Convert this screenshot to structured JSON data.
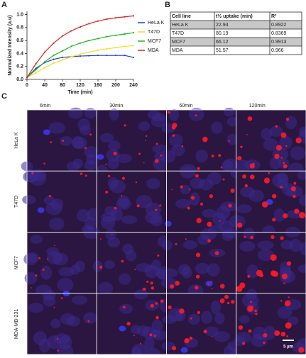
{
  "panel_labels": [
    "A",
    "B",
    "C"
  ],
  "chart_data": {
    "type": "line",
    "xlabel": "Time (min)",
    "ylabel": "Normalized Intensity (a.u)",
    "x": [
      0,
      20,
      40,
      60,
      80,
      100,
      120,
      140,
      160,
      180,
      200,
      220,
      240
    ],
    "xlim": [
      0,
      240
    ],
    "xticks": [
      0,
      40,
      80,
      120,
      160,
      200,
      240
    ],
    "ylim": [
      0,
      1.05
    ],
    "yticks": [
      {
        "value": 0,
        "label": "0.0"
      },
      0.2,
      0.4,
      0.6,
      0.8,
      {
        "value": 1,
        "label": "1.0"
      }
    ],
    "legend": "upper right",
    "series": [
      {
        "name": "HeLa K",
        "color": "#1f3fc8",
        "values": [
          0.03,
          0.17,
          0.26,
          0.31,
          0.34,
          0.35,
          0.36,
          0.365,
          0.37,
          0.37,
          0.37,
          0.37,
          0.34
        ]
      },
      {
        "name": "T47D",
        "color": "#f0e020",
        "values": [
          0.03,
          0.1,
          0.18,
          0.25,
          0.3,
          0.35,
          0.39,
          0.42,
          0.45,
          0.47,
          0.49,
          0.51,
          0.52
        ]
      },
      {
        "name": "MCF7",
        "color": "#18b818",
        "values": [
          0.03,
          0.15,
          0.27,
          0.37,
          0.44,
          0.51,
          0.56,
          0.6,
          0.63,
          0.66,
          0.68,
          0.7,
          0.72
        ]
      },
      {
        "name": "MDA",
        "color": "#e02020",
        "values": [
          0.03,
          0.24,
          0.42,
          0.56,
          0.67,
          0.75,
          0.81,
          0.86,
          0.9,
          0.93,
          0.95,
          0.965,
          0.98
        ]
      }
    ]
  },
  "table": {
    "header": [
      "Cell line",
      "t½ uptake (min)",
      "R²"
    ],
    "rows": [
      [
        "HeLa K",
        "22.94",
        "0.8922"
      ],
      [
        "T47D",
        "80.19",
        "0.8369"
      ],
      [
        "MCF7",
        "66.12",
        "0.9913"
      ],
      [
        "MDA",
        "51.57",
        "0.966"
      ]
    ]
  },
  "micrographs": {
    "columns": [
      "6min",
      "30min",
      "60min",
      "120min"
    ],
    "rows": [
      "HeLa K",
      "T47D",
      "MCF7",
      "MDA-MB-231"
    ],
    "scale_bar": "5 µm"
  }
}
